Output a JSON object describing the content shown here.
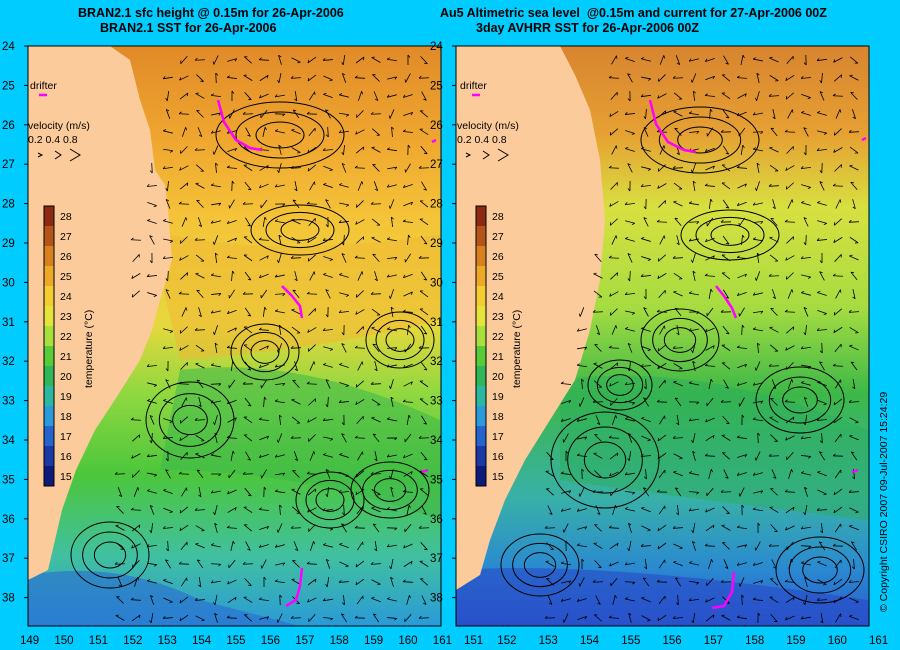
{
  "left_panel": {
    "title_line1": "BRAN2.1 sfc height @ 0.15m for 26-Apr-2006",
    "title_line2": "BRAN2.1 SST for 26-Apr-2006",
    "drifter_label": "drifter",
    "velocity_label": "velocity (m/s)",
    "velocity_scale": "0.2 0.4 0.8",
    "colorbar_label": "temperature (°C)"
  },
  "right_panel": {
    "title_line1": "Au5 Altimetric sea level  @0.15m and current for 27-Apr-2006 00Z",
    "title_line2": "3day AVHRR SST for 26-Apr-2006 00Z",
    "drifter_label": "drifter",
    "velocity_label": "velocity (m/s)",
    "velocity_scale": "0.2 0.4 0.8",
    "colorbar_label": "temperature (°C)"
  },
  "copyright": "© Copyright CSIRO 2007   09-Jul-2007 15:24:29",
  "lat_ticks": [
    "24",
    "25",
    "26",
    "27",
    "28",
    "29",
    "30",
    "31",
    "32",
    "33",
    "34",
    "35",
    "36",
    "37",
    "38"
  ],
  "lon_ticks_left": [
    "149",
    "150",
    "151",
    "152",
    "153",
    "154",
    "155",
    "156",
    "157",
    "158",
    "159",
    "160",
    "161"
  ],
  "lon_ticks_right": [
    "151",
    "152",
    "153",
    "154",
    "155",
    "156",
    "157",
    "158",
    "159",
    "160",
    "161"
  ],
  "colorbar_ticks": [
    "28",
    "27",
    "26",
    "25",
    "24",
    "23",
    "22",
    "21",
    "20",
    "19",
    "18",
    "17",
    "16",
    "15"
  ],
  "colorbar_colors": [
    "#8b2a10",
    "#b55416",
    "#d9801e",
    "#eea828",
    "#f4cd30",
    "#e6e33a",
    "#a8df3c",
    "#58cc38",
    "#2eb658",
    "#2ab8a0",
    "#2a9ad8",
    "#2464d0",
    "#1a38a8",
    "#0e1a7a"
  ],
  "colors": {
    "background": "#00ccff",
    "land": "#fccb9c",
    "drifter": "#ff00ff"
  }
}
